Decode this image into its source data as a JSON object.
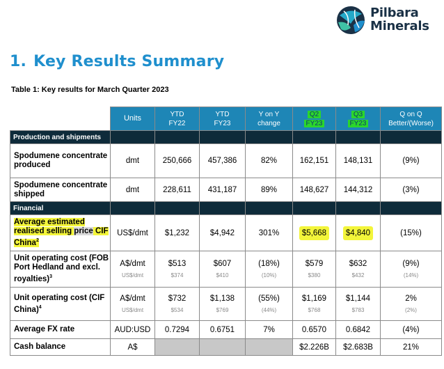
{
  "logo": {
    "line1": "Pilbara",
    "line2": "Minerals"
  },
  "heading": {
    "number": "1.",
    "title": "Key Results Summary"
  },
  "caption": "Table 1: Key results for March Quarter 2023",
  "columns": {
    "units": "Units",
    "ytd22_a": "YTD",
    "ytd22_b": "FY22",
    "ytd23_a": "YTD",
    "ytd23_b": "FY23",
    "yony_a": "Y on Y",
    "yony_b": "change",
    "q2_a": "Q2",
    "q2_b": "FY23",
    "q3_a": "Q3",
    "q3_b": "FY23",
    "qonq_a": "Q on Q",
    "qonq_b": "Better/(Worse)"
  },
  "sections": {
    "production": "Production and shipments",
    "financial": "Financial"
  },
  "rows": {
    "produced": {
      "label": "Spodumene concentrate produced",
      "units": "dmt",
      "ytd22": "250,666",
      "ytd23": "457,386",
      "yoy": "82%",
      "q2": "162,151",
      "q3": "148,131",
      "qoq": "(9%)"
    },
    "shipped": {
      "label": "Spodumene concentrate shipped",
      "units": "dmt",
      "ytd22": "228,611",
      "ytd23": "431,187",
      "yoy": "89%",
      "q2": "148,627",
      "q3": "144,312",
      "qoq": "(3%)"
    },
    "price": {
      "label_a": "Average estimated realised selling ",
      "label_b": "price",
      "label_c": " CIF China",
      "sup": "2",
      "units": "US$/dmt",
      "ytd22": "$1,232",
      "ytd23": "$4,942",
      "yoy": "301%",
      "q2": "$5,668",
      "q3": "$4,840",
      "qoq": "(15%)"
    },
    "fob": {
      "label": "Unit operating cost (FOB Port Hedland and excl. royalties)",
      "sup": "3",
      "units": "A$/dmt",
      "units_sub": "US$/dmt",
      "ytd22": "$513",
      "ytd22_sub": "$374",
      "ytd23": "$607",
      "ytd23_sub": "$410",
      "yoy": "(18%)",
      "yoy_sub": "(10%)",
      "q2": "$579",
      "q2_sub": "$380",
      "q3": "$632",
      "q3_sub": "$432",
      "qoq": "(9%)",
      "qoq_sub": "(14%)"
    },
    "cif": {
      "label": "Unit operating cost (CIF China)",
      "sup": "4",
      "units": "A$/dmt",
      "units_sub": "US$/dmt",
      "ytd22": "$732",
      "ytd22_sub": "$534",
      "ytd23": "$1,138",
      "ytd23_sub": "$769",
      "yoy": "(55%)",
      "yoy_sub": "(44%)",
      "q2": "$1,169",
      "q2_sub": "$768",
      "q3": "$1,144",
      "q3_sub": "$783",
      "qoq": "2%",
      "qoq_sub": "(2%)"
    },
    "fx": {
      "label": "Average FX rate",
      "units": "AUD:USD",
      "ytd22": "0.7294",
      "ytd23": "0.6751",
      "yoy": "7%",
      "q2": "0.6570",
      "q3": "0.6842",
      "qoq": "(4%)"
    },
    "cash": {
      "label": "Cash balance",
      "units": "A$",
      "q2": "$2.226B",
      "q3": "$2.683B",
      "qoq": "21%"
    }
  },
  "colors": {
    "accent": "#1e86b6",
    "section_bg": "#0e2b3a",
    "highlight_yellow": "#f3f53a",
    "highlight_green": "#2bd62b"
  }
}
